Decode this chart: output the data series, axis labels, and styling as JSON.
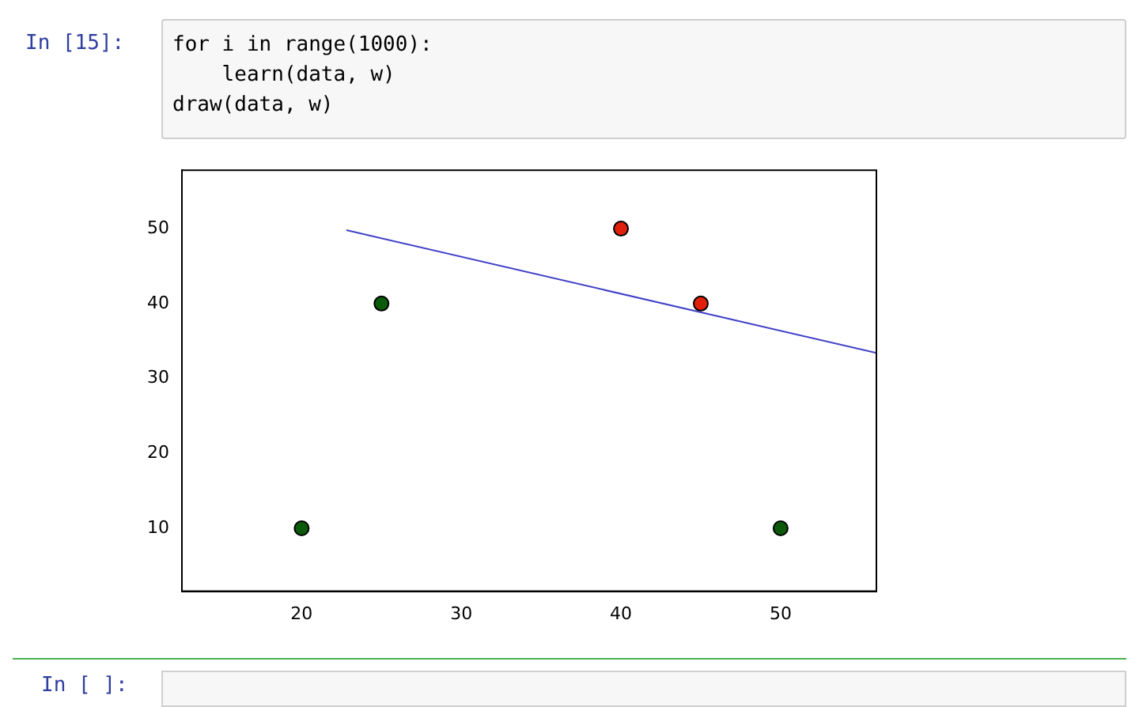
{
  "chart_data": {
    "type": "scatter",
    "annotations": [
      "In [15]:",
      "for i in range(1000):",
      "    learn(data, w)",
      "draw(data, w)",
      "In [ ]:"
    ],
    "series": [
      {
        "color": "#0a5a0a",
        "x": [
          20,
          25,
          50
        ],
        "values": [
          10,
          40,
          10
        ]
      },
      {
        "color": "#e0200c",
        "x": [
          40,
          45
        ],
        "values": [
          50,
          40
        ]
      },
      {
        "type": "line",
        "color": "#4040c8",
        "marker": "none",
        "x": [
          22.8,
          56
        ],
        "values": [
          49.8,
          33.4
        ]
      }
    ],
    "xlim": [
      12.5,
      56
    ],
    "ylim": [
      1.6,
      57.8
    ],
    "xticks": [
      20,
      30,
      40,
      50
    ],
    "yticks": [
      10,
      20,
      30,
      40,
      50
    ],
    "grid": false,
    "legend": false,
    "marker": "circle"
  }
}
